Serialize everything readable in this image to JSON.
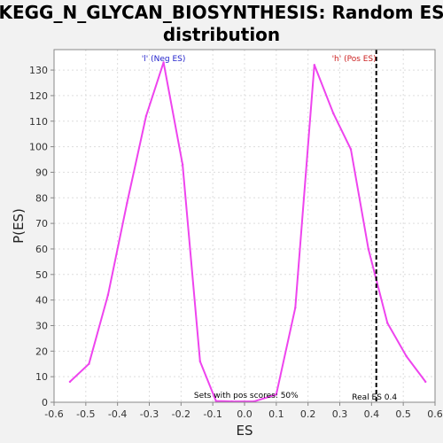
{
  "chart_data": {
    "type": "line",
    "title_lines": [
      "KEGG_N_GLYCAN_BIOSYNTHESIS: Random ES",
      "distribution"
    ],
    "xlabel": "ES",
    "ylabel": "P(ES)",
    "xlim": [
      -0.6,
      0.6
    ],
    "ylim": [
      0,
      138
    ],
    "xticks": [
      -0.6,
      -0.5,
      -0.4,
      -0.3,
      -0.2,
      -0.1,
      0.0,
      0.1,
      0.2,
      0.3,
      0.4,
      0.5,
      0.6
    ],
    "xtick_labels": [
      "-0.6",
      "-0.5",
      "-0.4",
      "-0.3",
      "-0.2",
      "-0.1",
      "0.0",
      "0.1",
      "0.2",
      "0.3",
      "0.4",
      "0.5",
      "0.6"
    ],
    "yticks": [
      0,
      10,
      20,
      30,
      40,
      50,
      60,
      70,
      80,
      90,
      100,
      110,
      120,
      130
    ],
    "grid": true,
    "series": [
      {
        "color": "#ee44ee",
        "x": [
          -0.55,
          -0.49,
          -0.43,
          -0.37,
          -0.31,
          -0.255,
          -0.195,
          -0.14,
          -0.09,
          -0.04,
          0.03,
          0.1,
          0.16,
          0.22,
          0.28,
          0.335,
          0.39,
          0.45,
          0.51,
          0.57
        ],
        "y": [
          8,
          15,
          42,
          78,
          112,
          133,
          93,
          16,
          0.5,
          0.3,
          0.3,
          3,
          37,
          132,
          113,
          99,
          60,
          31,
          18,
          8
        ]
      }
    ],
    "vline": {
      "x": 0.415,
      "label": "Real ES 0.4",
      "color": "#000000"
    },
    "annotations": [
      {
        "text": "'l' (Neg ES)",
        "x": -0.255,
        "color": "#2222cc"
      },
      {
        "text": "'h' (Pos ES)",
        "x": 0.345,
        "color": "#cc2222"
      },
      {
        "text": "Sets with pos scores: 50%",
        "x": 0.005,
        "color": "#000000"
      }
    ]
  }
}
